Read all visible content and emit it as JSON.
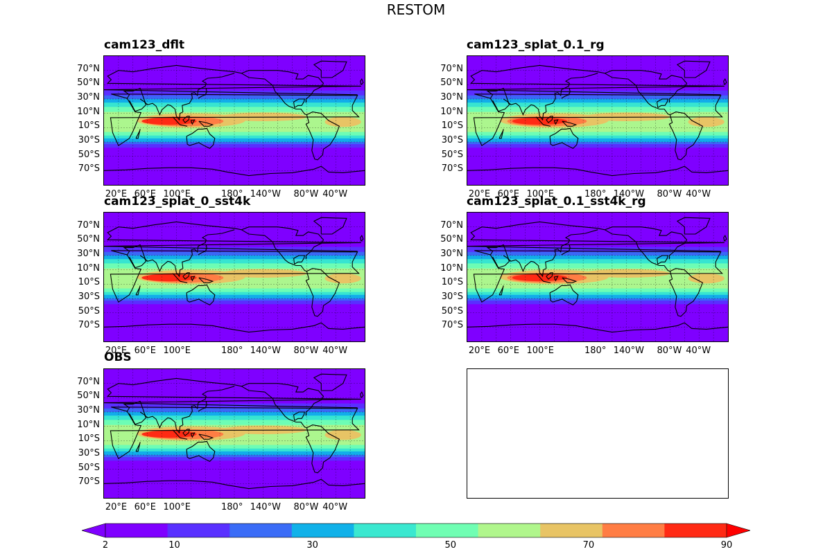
{
  "figure": {
    "title": "RESTOM"
  },
  "panels": [
    {
      "title": "cam123_dflt",
      "has_data": true
    },
    {
      "title": "cam123_splat_0.1_rg",
      "has_data": true
    },
    {
      "title": "cam123_splat_0_sst4k",
      "has_data": true
    },
    {
      "title": "cam123_splat_0.1_sst4k_rg",
      "has_data": true
    },
    {
      "title": "OBS",
      "has_data": true
    },
    {
      "title": "",
      "has_data": false
    }
  ],
  "axes": {
    "lat_ticks": [
      "70°N",
      "50°N",
      "30°N",
      "10°N",
      "10°S",
      "30°S",
      "50°S",
      "70°S"
    ],
    "lon_ticks": [
      "20°E",
      "60°E",
      "100°E",
      "180°",
      "140°W",
      "80°W",
      "40°W"
    ]
  },
  "colorbar": {
    "ticks": [
      "2",
      "10",
      "30",
      "50",
      "70",
      "90"
    ],
    "colors": [
      "#7f00ff",
      "#5930ff",
      "#3a6cf7",
      "#10b1e9",
      "#3ae8d0",
      "#70feb3",
      "#b0f68c",
      "#e8c465",
      "#ff7d44",
      "#ff2a14"
    ],
    "under_color": "#7f00ff",
    "over_color": "#ff0000",
    "extend": "both"
  },
  "map_style": {
    "projection": "PlateCarree, centered 180°",
    "gridlines": "dashed",
    "coastlines": "black"
  }
}
